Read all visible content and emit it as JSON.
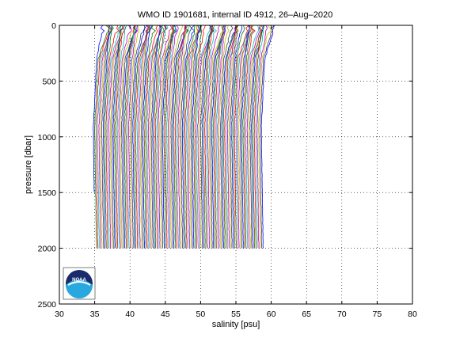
{
  "chart_data": {
    "type": "line",
    "title": "WMO ID 1901681, internal ID 4912, 26–Aug–2020",
    "xlabel": "salinity [psu]",
    "ylabel": "pressure [dbar]",
    "xlim": [
      30,
      80
    ],
    "ylim": [
      0,
      2500
    ],
    "y_reversed": true,
    "grid": true,
    "xticks": [
      "30",
      "35",
      "40",
      "45",
      "50",
      "55",
      "60",
      "65",
      "70",
      "75",
      "80"
    ],
    "yticks": [
      "0",
      "500",
      "1000",
      "1500",
      "2000",
      "2500"
    ],
    "profiles": {
      "count": 120,
      "offset_per_profile": 0.2,
      "first_surface_salinity": 36.0,
      "deep_salinity": 35.0,
      "max_pressure": 2000,
      "colors": [
        "#0000ff",
        "#008000",
        "#ff0000",
        "#00bfbf",
        "#bf00bf",
        "#bfbf00",
        "#404040"
      ]
    },
    "logo": "noaa-logo"
  }
}
